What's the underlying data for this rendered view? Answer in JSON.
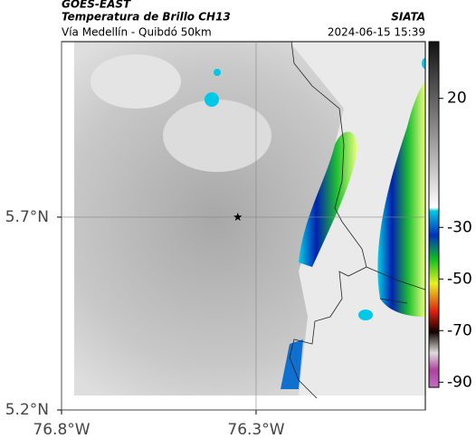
{
  "header": {
    "title": "GOES-EAST",
    "subtitle": "Temperatura de Brillo CH13",
    "location": "Vía Medellín - Quibdó 50km",
    "source": "SIATA",
    "datetime": "2024-06-15 15:39"
  },
  "map": {
    "xlim": [
      -76.8,
      -75.865
    ],
    "ylim": [
      5.2,
      6.155
    ],
    "xticks": [
      {
        "value": -76.8,
        "label": "76.8°W"
      },
      {
        "value": -76.3,
        "label": "76.3°W"
      }
    ],
    "yticks": [
      {
        "value": 5.2,
        "label": "5.2°N"
      },
      {
        "value": 5.7,
        "label": "5.7°N"
      }
    ],
    "grid": true,
    "marker": {
      "lon": -76.347,
      "lat": 5.7
    }
  },
  "colorbar": {
    "clim": [
      42,
      -92
    ],
    "ticks": [
      20,
      -30,
      -50,
      -70,
      -90
    ]
  }
}
